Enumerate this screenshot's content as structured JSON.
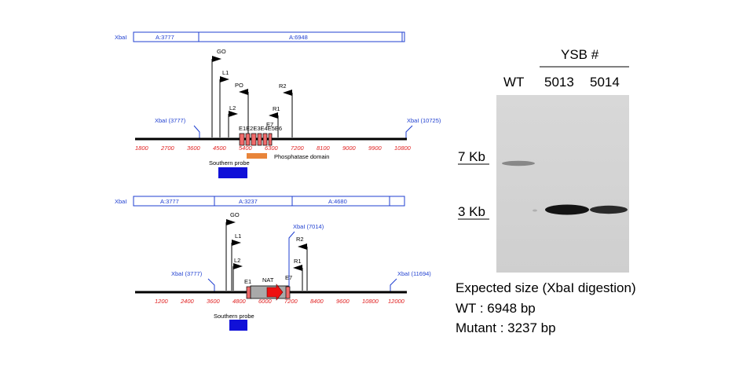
{
  "top_map": {
    "enzyme": "XbaI",
    "fragments": [
      "A:3777",
      "A:6948"
    ],
    "sites": [
      "XbaI (3777)",
      "XbaI (10725)"
    ],
    "primers": [
      "GO",
      "L1",
      "PO",
      "R2",
      "L2",
      "R1"
    ],
    "exon_label": "E1E2E3E4E5E6",
    "exon_end_label": "E7",
    "ticks": [
      "1800",
      "2700",
      "3600",
      "4500",
      "5400",
      "6300",
      "7200",
      "8100",
      "9000",
      "9900",
      "10800"
    ],
    "domain_label": "Phosphatase domain",
    "probe_label": "Southern probe",
    "domain_color": "#e8843a",
    "probe_color": "#1010d8"
  },
  "bottom_map": {
    "enzyme": "XbaI",
    "fragments": [
      "A:3777",
      "A:3237",
      "A:4680"
    ],
    "sites": [
      "XbaI (3777)",
      "XbaI (7014)",
      "XbaI (11694)"
    ],
    "primers": [
      "GO",
      "L1",
      "L2",
      "R2",
      "R1"
    ],
    "exon_labels": [
      "E1",
      "E7"
    ],
    "cassette_label": "NAT",
    "ticks": [
      "1200",
      "2400",
      "3600",
      "4800",
      "6000",
      "7200",
      "8400",
      "9600",
      "10800",
      "12000"
    ],
    "probe_label": "Southern probe"
  },
  "blot": {
    "group_label": "YSB #",
    "lanes": [
      "WT",
      "5013",
      "5014"
    ],
    "markers": [
      "7 Kb",
      "3 Kb"
    ]
  },
  "caption": {
    "line1": "Expected size (XbaI digestion)",
    "line2": "WT : 6948 bp",
    "line3": "Mutant : 3237 bp"
  },
  "colors": {
    "site_blue": "#1f3fd0",
    "tick_red": "#e02020",
    "exon_fill": "#f06a6a",
    "arrow_red": "#ee1010"
  }
}
